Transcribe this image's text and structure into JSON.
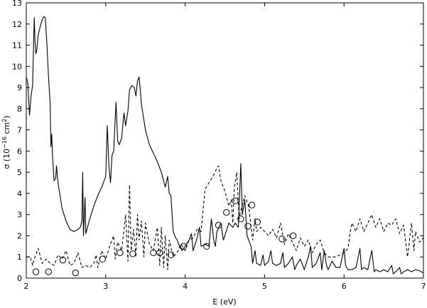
{
  "chart_data": {
    "type": "line",
    "xlabel": "E (eV)",
    "ylabel_main": "σ (10",
    "ylabel_exp": "−16",
    "ylabel_unit": " cm",
    "ylabel_unit_exp": "2",
    "ylabel_close": ")",
    "xlim": [
      2,
      7
    ],
    "ylim": [
      0,
      13
    ],
    "xticks": [
      2,
      3,
      4,
      5,
      6,
      7
    ],
    "yticks": [
      0,
      1,
      2,
      3,
      4,
      5,
      6,
      7,
      8,
      9,
      10,
      11,
      12,
      13
    ],
    "grid": false,
    "series": [
      {
        "style": "solid",
        "points": [
          [
            2.0,
            9.5
          ],
          [
            2.02,
            9.2
          ],
          [
            2.04,
            7.7
          ],
          [
            2.06,
            8.6
          ],
          [
            2.08,
            9.1
          ],
          [
            2.09,
            10.8
          ],
          [
            2.1,
            12.3
          ],
          [
            2.11,
            11.2
          ],
          [
            2.12,
            10.6
          ],
          [
            2.13,
            10.7
          ],
          [
            2.15,
            11.5
          ],
          [
            2.17,
            11.8
          ],
          [
            2.2,
            12.2
          ],
          [
            2.22,
            12.35
          ],
          [
            2.24,
            12.3
          ],
          [
            2.26,
            11.0
          ],
          [
            2.28,
            9.5
          ],
          [
            2.3,
            8.3
          ],
          [
            2.31,
            6.2
          ],
          [
            2.32,
            6.8
          ],
          [
            2.33,
            5.8
          ],
          [
            2.35,
            4.6
          ],
          [
            2.37,
            4.7
          ],
          [
            2.38,
            5.3
          ],
          [
            2.4,
            4.5
          ],
          [
            2.45,
            3.3
          ],
          [
            2.5,
            2.7
          ],
          [
            2.55,
            2.3
          ],
          [
            2.6,
            2.2
          ],
          [
            2.65,
            2.3
          ],
          [
            2.68,
            2.4
          ],
          [
            2.7,
            2.7
          ],
          [
            2.71,
            5.0
          ],
          [
            2.72,
            2.0
          ],
          [
            2.74,
            3.8
          ],
          [
            2.75,
            2.1
          ],
          [
            2.8,
            2.8
          ],
          [
            2.85,
            3.4
          ],
          [
            2.9,
            3.9
          ],
          [
            2.95,
            4.3
          ],
          [
            3.0,
            4.8
          ],
          [
            3.02,
            7.2
          ],
          [
            3.04,
            5.3
          ],
          [
            3.06,
            4.5
          ],
          [
            3.08,
            5.8
          ],
          [
            3.1,
            6.0
          ],
          [
            3.13,
            8.3
          ],
          [
            3.15,
            6.5
          ],
          [
            3.17,
            6.3
          ],
          [
            3.2,
            6.6
          ],
          [
            3.23,
            7.8
          ],
          [
            3.25,
            7.2
          ],
          [
            3.28,
            7.9
          ],
          [
            3.3,
            8.9
          ],
          [
            3.33,
            9.1
          ],
          [
            3.36,
            9.0
          ],
          [
            3.38,
            8.6
          ],
          [
            3.4,
            9.3
          ],
          [
            3.42,
            9.5
          ],
          [
            3.45,
            8.2
          ],
          [
            3.5,
            7.0
          ],
          [
            3.55,
            6.3
          ],
          [
            3.6,
            5.9
          ],
          [
            3.65,
            5.5
          ],
          [
            3.7,
            5.0
          ],
          [
            3.75,
            4.3
          ],
          [
            3.78,
            4.8
          ],
          [
            3.8,
            4.0
          ],
          [
            3.82,
            3.9
          ],
          [
            3.85,
            2.2
          ],
          [
            3.88,
            1.9
          ],
          [
            3.9,
            1.8
          ],
          [
            3.93,
            1.5
          ],
          [
            3.96,
            1.3
          ],
          [
            4.0,
            1.5
          ],
          [
            4.05,
            1.8
          ],
          [
            4.08,
            2.1
          ],
          [
            4.1,
            1.3
          ],
          [
            4.15,
            1.9
          ],
          [
            4.18,
            2.4
          ],
          [
            4.2,
            1.5
          ],
          [
            4.25,
            1.6
          ],
          [
            4.3,
            1.5
          ],
          [
            4.33,
            2.8
          ],
          [
            4.36,
            1.8
          ],
          [
            4.38,
            1.5
          ],
          [
            4.4,
            2.2
          ],
          [
            4.45,
            2.6
          ],
          [
            4.48,
            1.8
          ],
          [
            4.5,
            2.0
          ],
          [
            4.55,
            2.6
          ],
          [
            4.6,
            2.4
          ],
          [
            4.63,
            2.6
          ],
          [
            4.67,
            2.4
          ],
          [
            4.7,
            5.4
          ],
          [
            4.72,
            3.0
          ],
          [
            4.75,
            3.7
          ],
          [
            4.78,
            2.0
          ],
          [
            4.8,
            1.8
          ],
          [
            4.83,
            1.5
          ],
          [
            4.85,
            0.7
          ],
          [
            4.88,
            1.3
          ],
          [
            4.9,
            0.7
          ],
          [
            4.95,
            0.6
          ],
          [
            4.98,
            1.1
          ],
          [
            5.0,
            0.6
          ],
          [
            5.05,
            0.8
          ],
          [
            5.08,
            1.3
          ],
          [
            5.1,
            0.7
          ],
          [
            5.15,
            0.6
          ],
          [
            5.2,
            0.7
          ],
          [
            5.23,
            1.2
          ],
          [
            5.25,
            0.5
          ],
          [
            5.3,
            0.7
          ],
          [
            5.35,
            1.0
          ],
          [
            5.38,
            0.4
          ],
          [
            5.4,
            0.6
          ],
          [
            5.45,
            0.9
          ],
          [
            5.5,
            0.4
          ],
          [
            5.55,
            1.0
          ],
          [
            5.58,
            1.5
          ],
          [
            5.6,
            0.5
          ],
          [
            5.65,
            0.7
          ],
          [
            5.7,
            1.2
          ],
          [
            5.72,
            0.4
          ],
          [
            5.75,
            1.3
          ],
          [
            5.78,
            0.6
          ],
          [
            5.8,
            0.4
          ],
          [
            5.85,
            0.8
          ],
          [
            5.9,
            0.5
          ],
          [
            5.95,
            0.5
          ],
          [
            6.0,
            1.4
          ],
          [
            6.02,
            0.6
          ],
          [
            6.05,
            0.4
          ],
          [
            6.1,
            0.4
          ],
          [
            6.15,
            0.5
          ],
          [
            6.2,
            1.4
          ],
          [
            6.22,
            0.4
          ],
          [
            6.25,
            0.5
          ],
          [
            6.3,
            0.4
          ],
          [
            6.35,
            1.3
          ],
          [
            6.38,
            0.3
          ],
          [
            6.4,
            0.4
          ],
          [
            6.45,
            0.3
          ],
          [
            6.5,
            0.4
          ],
          [
            6.55,
            0.3
          ],
          [
            6.6,
            0.6
          ],
          [
            6.62,
            0.2
          ],
          [
            6.65,
            0.3
          ],
          [
            6.7,
            0.5
          ],
          [
            6.72,
            0.2
          ],
          [
            6.75,
            0.3
          ],
          [
            6.8,
            0.4
          ],
          [
            6.85,
            0.3
          ],
          [
            6.9,
            0.4
          ],
          [
            6.95,
            0.35
          ],
          [
            7.0,
            0.25
          ]
        ]
      },
      {
        "style": "dashed",
        "points": [
          [
            2.0,
            1.0
          ],
          [
            2.05,
            1.0
          ],
          [
            2.08,
            0.6
          ],
          [
            2.1,
            0.9
          ],
          [
            2.15,
            1.4
          ],
          [
            2.2,
            0.7
          ],
          [
            2.25,
            0.9
          ],
          [
            2.3,
            0.7
          ],
          [
            2.35,
            0.6
          ],
          [
            2.4,
            1.1
          ],
          [
            2.45,
            0.9
          ],
          [
            2.5,
            1.3
          ],
          [
            2.55,
            0.6
          ],
          [
            2.6,
            0.7
          ],
          [
            2.65,
            1.2
          ],
          [
            2.7,
            0.5
          ],
          [
            2.75,
            0.6
          ],
          [
            2.8,
            0.5
          ],
          [
            2.85,
            0.7
          ],
          [
            2.88,
            1.1
          ],
          [
            2.9,
            0.5
          ],
          [
            2.95,
            1.3
          ],
          [
            3.0,
            0.9
          ],
          [
            3.05,
            1.5
          ],
          [
            3.1,
            2.0
          ],
          [
            3.12,
            0.9
          ],
          [
            3.15,
            1.7
          ],
          [
            3.2,
            1.3
          ],
          [
            3.25,
            3.0
          ],
          [
            3.28,
            0.8
          ],
          [
            3.3,
            4.4
          ],
          [
            3.32,
            1.3
          ],
          [
            3.35,
            2.3
          ],
          [
            3.38,
            1.0
          ],
          [
            3.4,
            3.0
          ],
          [
            3.42,
            1.8
          ],
          [
            3.45,
            2.7
          ],
          [
            3.48,
            1.0
          ],
          [
            3.5,
            2.6
          ],
          [
            3.55,
            1.6
          ],
          [
            3.6,
            1.3
          ],
          [
            3.65,
            2.4
          ],
          [
            3.68,
            0.6
          ],
          [
            3.7,
            2.4
          ],
          [
            3.73,
            0.5
          ],
          [
            3.75,
            2.0
          ],
          [
            3.78,
            0.4
          ],
          [
            3.8,
            1.8
          ],
          [
            3.85,
            1.0
          ],
          [
            3.9,
            1.2
          ],
          [
            3.95,
            1.6
          ],
          [
            4.0,
            1.3
          ],
          [
            4.05,
            1.8
          ],
          [
            4.1,
            1.9
          ],
          [
            4.15,
            2.3
          ],
          [
            4.2,
            2.2
          ],
          [
            4.25,
            4.2
          ],
          [
            4.3,
            4.5
          ],
          [
            4.35,
            4.8
          ],
          [
            4.4,
            5.2
          ],
          [
            4.42,
            5.3
          ],
          [
            4.45,
            4.6
          ],
          [
            4.5,
            4.1
          ],
          [
            4.55,
            3.4
          ],
          [
            4.58,
            3.7
          ],
          [
            4.6,
            2.6
          ],
          [
            4.62,
            4.3
          ],
          [
            4.65,
            5.0
          ],
          [
            4.68,
            2.8
          ],
          [
            4.7,
            3.2
          ],
          [
            4.75,
            3.9
          ],
          [
            4.8,
            3.4
          ],
          [
            4.85,
            1.8
          ],
          [
            4.88,
            2.8
          ],
          [
            4.9,
            2.2
          ],
          [
            4.95,
            2.4
          ],
          [
            5.0,
            2.2
          ],
          [
            5.05,
            2.0
          ],
          [
            5.1,
            2.3
          ],
          [
            5.15,
            1.9
          ],
          [
            5.2,
            2.6
          ],
          [
            5.25,
            1.6
          ],
          [
            5.3,
            2.1
          ],
          [
            5.35,
            1.7
          ],
          [
            5.4,
            1.3
          ],
          [
            5.45,
            1.9
          ],
          [
            5.5,
            1.5
          ],
          [
            5.55,
            1.8
          ],
          [
            5.6,
            1.2
          ],
          [
            5.65,
            1.6
          ],
          [
            5.7,
            1.8
          ],
          [
            5.75,
            1.2
          ],
          [
            5.8,
            1.0
          ],
          [
            5.85,
            1.0
          ],
          [
            5.9,
            1.0
          ],
          [
            5.95,
            1.1
          ],
          [
            6.0,
            1.2
          ],
          [
            6.05,
            1.4
          ],
          [
            6.08,
            2.2
          ],
          [
            6.1,
            2.6
          ],
          [
            6.15,
            2.2
          ],
          [
            6.2,
            2.8
          ],
          [
            6.25,
            2.2
          ],
          [
            6.3,
            2.6
          ],
          [
            6.35,
            3.0
          ],
          [
            6.4,
            2.4
          ],
          [
            6.45,
            2.8
          ],
          [
            6.5,
            2.2
          ],
          [
            6.55,
            2.6
          ],
          [
            6.6,
            2.5
          ],
          [
            6.65,
            2.8
          ],
          [
            6.7,
            2.1
          ],
          [
            6.75,
            2.5
          ],
          [
            6.8,
            1.0
          ],
          [
            6.85,
            2.6
          ],
          [
            6.88,
            1.3
          ],
          [
            6.9,
            2.2
          ],
          [
            6.95,
            1.7
          ],
          [
            7.0,
            1.9
          ]
        ]
      },
      {
        "style": "markers",
        "points": [
          [
            2.12,
            0.3
          ],
          [
            2.28,
            0.3
          ],
          [
            2.46,
            0.85
          ],
          [
            2.62,
            0.25
          ],
          [
            2.96,
            0.9
          ],
          [
            3.18,
            1.2
          ],
          [
            3.34,
            1.15
          ],
          [
            3.6,
            1.2
          ],
          [
            3.68,
            1.2
          ],
          [
            3.82,
            1.1
          ],
          [
            3.98,
            1.5
          ],
          [
            4.27,
            1.5
          ],
          [
            4.42,
            2.5
          ],
          [
            4.52,
            3.1
          ],
          [
            4.63,
            3.65
          ],
          [
            4.7,
            2.8
          ],
          [
            4.79,
            2.45
          ],
          [
            4.84,
            3.45
          ],
          [
            4.91,
            2.65
          ],
          [
            5.22,
            1.85
          ],
          [
            5.36,
            2.0
          ]
        ]
      }
    ]
  }
}
